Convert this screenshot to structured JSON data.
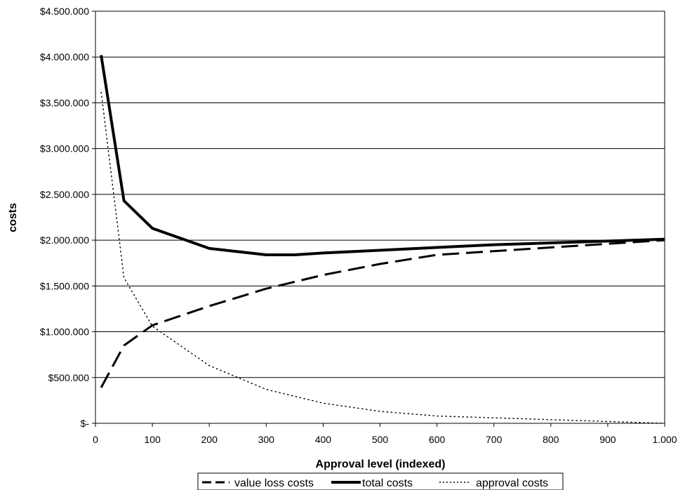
{
  "chart_data": {
    "type": "line",
    "title": "",
    "xlabel": "Approval level (indexed)",
    "ylabel": "costs",
    "xlim": [
      0,
      1000
    ],
    "ylim": [
      0,
      4500000
    ],
    "x_ticks": [
      0,
      100,
      200,
      300,
      400,
      500,
      600,
      700,
      800,
      900,
      1000
    ],
    "x_tick_labels": [
      "0",
      "100",
      "200",
      "300",
      "400",
      "500",
      "600",
      "700",
      "800",
      "900",
      "1.000"
    ],
    "y_ticks": [
      0,
      500000,
      1000000,
      1500000,
      2000000,
      2500000,
      3000000,
      3500000,
      4000000,
      4500000
    ],
    "y_tick_labels": [
      "$-",
      "$500.000",
      "$1.000.000",
      "$1.500.000",
      "$2.000.000",
      "$2.500.000",
      "$3.000.000",
      "$3.500.000",
      "$4.000.000",
      "$4.500.000"
    ],
    "grid": "horizontal",
    "legend_position": "bottom",
    "series": [
      {
        "name": "value loss costs",
        "style": "dashed",
        "color": "#000000",
        "x": [
          10,
          50,
          100,
          200,
          300,
          400,
          500,
          600,
          700,
          800,
          900,
          1000
        ],
        "y": [
          390000,
          850000,
          1070000,
          1280000,
          1470000,
          1620000,
          1740000,
          1840000,
          1880000,
          1920000,
          1960000,
          2000000
        ]
      },
      {
        "name": "total costs",
        "style": "solid-thick",
        "color": "#000000",
        "x": [
          10,
          50,
          100,
          150,
          200,
          300,
          350,
          400,
          500,
          600,
          700,
          800,
          900,
          1000
        ],
        "y": [
          4020000,
          2430000,
          2130000,
          2020000,
          1910000,
          1840000,
          1840000,
          1860000,
          1890000,
          1920000,
          1950000,
          1970000,
          1990000,
          2010000
        ]
      },
      {
        "name": "approval costs",
        "style": "dotted",
        "color": "#000000",
        "x": [
          10,
          50,
          100,
          200,
          300,
          400,
          500,
          600,
          700,
          800,
          900,
          1000
        ],
        "y": [
          3620000,
          1590000,
          1060000,
          630000,
          370000,
          220000,
          130000,
          80000,
          60000,
          40000,
          20000,
          0
        ]
      }
    ]
  }
}
